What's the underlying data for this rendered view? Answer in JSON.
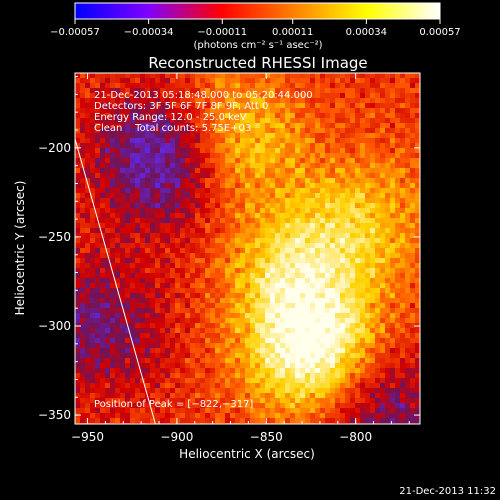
{
  "chart_data": {
    "type": "heatmap",
    "title": "Reconstructed RHESSI Image",
    "xlabel": "Heliocentric X (arcsec)",
    "ylabel": "Heliocentric Y (arcsec)",
    "xlim": [
      -957,
      -764
    ],
    "ylim": [
      -355,
      -158
    ],
    "x_ticks": [
      -950,
      -900,
      -850,
      -800
    ],
    "x_tick_labels": [
      "−950",
      "−900",
      "−850",
      "−800"
    ],
    "y_ticks": [
      -350,
      -300,
      -250,
      -200
    ],
    "y_tick_labels": [
      "−350",
      "−300",
      "−250",
      "−200"
    ],
    "colorbar": {
      "range": [
        -0.00057,
        0.00057
      ],
      "ticks": [
        -0.00057,
        -0.00034,
        -0.00011,
        0.00011,
        0.00034,
        0.00057
      ],
      "tick_labels": [
        "−0.00057",
        "−0.00034",
        "−0.00011",
        "0.00011",
        "0.00034",
        "0.00057"
      ],
      "units_label": "(photons cm⁻² s⁻¹ asec⁻²)",
      "colors": [
        "#0000ff",
        "#8000ff",
        "#ff0000",
        "#ff8000",
        "#ffff00",
        "#ffffff"
      ]
    },
    "info": [
      "21-Dec-2013 05:18:48.000 to 05:20:44.000",
      "Detectors: 3F 5F 6F 7F 8F 9F, Att 0",
      "Energy Range: 12.0 - 25.0 keV",
      "Clean    Total counts: 5.75E+03"
    ],
    "peak_label": "Position of Peak = [−822,−317]",
    "limb_line": {
      "x": [
        -957,
        -912
      ],
      "y": [
        -195,
        -355
      ]
    },
    "image_features": [
      {
        "note": "bright core",
        "x": -822,
        "y": -317,
        "amp": 1.0
      },
      {
        "note": "bright blob",
        "x": -870,
        "y": -195,
        "amp": 0.65
      },
      {
        "note": "bright ridge",
        "x": -835,
        "y": -270,
        "amp": 0.6
      },
      {
        "note": "bright band",
        "x": -795,
        "y": -240,
        "amp": 0.45
      },
      {
        "note": "negative region",
        "x": -905,
        "y": -205,
        "amp": -0.8
      },
      {
        "note": "negative region",
        "x": -790,
        "y": -345,
        "amp": -0.6
      },
      {
        "note": "negative region",
        "x": -945,
        "y": -300,
        "amp": -0.45
      }
    ]
  },
  "footer": {
    "timestamp": "21-Dec-2013 11:32"
  }
}
